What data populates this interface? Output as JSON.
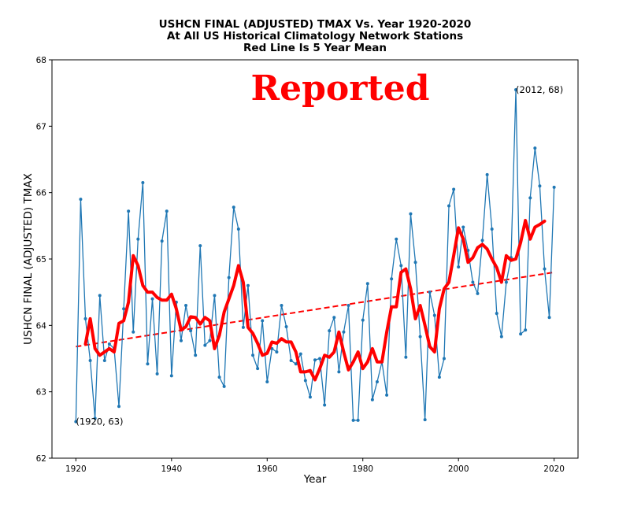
{
  "chart_data": {
    "type": "line",
    "title_lines": [
      "USHCN FINAL (ADJUSTED) TMAX Vs. Year 1920-2020",
      "At All US Historical Climatology Network Stations",
      "Red Line Is 5 Year Mean"
    ],
    "xlabel": "Year",
    "ylabel": "USHCN FINAL (ADJUSTED) TMAX",
    "xlim": [
      1915,
      2025
    ],
    "ylim": [
      62,
      68
    ],
    "xticks": [
      1920,
      1940,
      1960,
      1980,
      2000,
      2020
    ],
    "yticks": [
      62,
      63,
      64,
      65,
      66,
      67,
      68
    ],
    "grid": false,
    "stamp_text": "Reported",
    "stamp_color": "#ff0000",
    "annotations": [
      {
        "text": "(1920, 63)",
        "x": 1920,
        "y": 62.55
      },
      {
        "text": "(2012, 68)",
        "x": 2012,
        "y": 67.55
      }
    ],
    "series": [
      {
        "style": "line-with-dots",
        "color": "#1f77b4",
        "x": [
          1920,
          1921,
          1922,
          1923,
          1924,
          1925,
          1926,
          1927,
          1928,
          1929,
          1930,
          1931,
          1932,
          1933,
          1934,
          1935,
          1936,
          1937,
          1938,
          1939,
          1940,
          1941,
          1942,
          1943,
          1944,
          1945,
          1946,
          1947,
          1948,
          1949,
          1950,
          1951,
          1952,
          1953,
          1954,
          1955,
          1956,
          1957,
          1958,
          1959,
          1960,
          1961,
          1962,
          1963,
          1964,
          1965,
          1966,
          1967,
          1968,
          1969,
          1970,
          1971,
          1972,
          1973,
          1974,
          1975,
          1976,
          1977,
          1978,
          1979,
          1980,
          1981,
          1982,
          1983,
          1984,
          1985,
          1986,
          1987,
          1988,
          1989,
          1990,
          1991,
          1992,
          1993,
          1994,
          1995,
          1996,
          1997,
          1998,
          1999,
          2000,
          2001,
          2002,
          2003,
          2004,
          2005,
          2006,
          2007,
          2008,
          2009,
          2010,
          2011,
          2012,
          2013,
          2014,
          2015,
          2016,
          2017,
          2018,
          2019,
          2020
        ],
        "y": [
          62.55,
          65.9,
          64.1,
          63.47,
          62.6,
          64.45,
          63.47,
          63.72,
          63.65,
          62.78,
          64.25,
          65.72,
          63.9,
          65.3,
          66.15,
          63.42,
          64.4,
          63.27,
          65.27,
          65.72,
          63.24,
          64.35,
          63.77,
          64.3,
          63.92,
          63.55,
          65.2,
          63.7,
          63.77,
          64.45,
          63.22,
          63.08,
          64.72,
          65.78,
          65.45,
          63.97,
          64.6,
          63.55,
          63.35,
          64.07,
          63.15,
          63.65,
          63.6,
          64.3,
          63.98,
          63.47,
          63.42,
          63.57,
          63.17,
          62.92,
          63.48,
          63.5,
          62.8,
          63.92,
          64.12,
          63.3,
          63.9,
          64.3,
          62.57,
          62.57,
          64.08,
          64.63,
          62.88,
          63.15,
          63.45,
          62.95,
          64.7,
          65.3,
          64.9,
          63.52,
          65.68,
          64.95,
          63.83,
          62.58,
          64.5,
          64.15,
          63.22,
          63.5,
          65.8,
          66.05,
          64.88,
          65.48,
          65.13,
          64.65,
          64.48,
          65.28,
          66.27,
          65.45,
          64.18,
          63.83,
          64.65,
          65.02,
          67.55,
          63.87,
          63.93,
          65.92,
          66.67,
          66.1,
          64.85,
          64.12,
          66.08
        ]
      },
      {
        "style": "thick-line",
        "color": "#ff0000",
        "x": [
          1922,
          1923,
          1924,
          1925,
          1926,
          1927,
          1928,
          1929,
          1930,
          1931,
          1932,
          1933,
          1934,
          1935,
          1936,
          1937,
          1938,
          1939,
          1940,
          1941,
          1942,
          1943,
          1944,
          1945,
          1946,
          1947,
          1948,
          1949,
          1950,
          1951,
          1952,
          1953,
          1954,
          1955,
          1956,
          1957,
          1958,
          1959,
          1960,
          1961,
          1962,
          1963,
          1964,
          1965,
          1966,
          1967,
          1968,
          1969,
          1970,
          1971,
          1972,
          1973,
          1974,
          1975,
          1976,
          1977,
          1978,
          1979,
          1980,
          1981,
          1982,
          1983,
          1984,
          1985,
          1986,
          1987,
          1988,
          1989,
          1990,
          1991,
          1992,
          1993,
          1994,
          1995,
          1996,
          1997,
          1998,
          1999,
          2000,
          2001,
          2002,
          2003,
          2004,
          2005,
          2006,
          2007,
          2008,
          2009,
          2010,
          2011,
          2012,
          2013,
          2014,
          2015,
          2016,
          2017,
          2018
        ],
        "y": [
          63.72,
          64.1,
          63.65,
          63.55,
          63.6,
          63.65,
          63.6,
          64.03,
          64.07,
          64.35,
          65.05,
          64.9,
          64.6,
          64.5,
          64.5,
          64.42,
          64.38,
          64.38,
          64.47,
          64.25,
          63.93,
          63.98,
          64.13,
          64.12,
          64.02,
          64.12,
          64.07,
          63.65,
          63.85,
          64.2,
          64.4,
          64.6,
          64.9,
          64.65,
          63.97,
          63.88,
          63.73,
          63.55,
          63.58,
          63.75,
          63.73,
          63.8,
          63.75,
          63.75,
          63.6,
          63.3,
          63.3,
          63.32,
          63.18,
          63.35,
          63.55,
          63.52,
          63.6,
          63.9,
          63.6,
          63.33,
          63.45,
          63.6,
          63.35,
          63.45,
          63.65,
          63.45,
          63.45,
          63.9,
          64.28,
          64.28,
          64.8,
          64.85,
          64.55,
          64.1,
          64.3,
          64.0,
          63.68,
          63.6,
          64.25,
          64.55,
          64.65,
          65.05,
          65.47,
          65.3,
          64.95,
          65.02,
          65.17,
          65.22,
          65.15,
          65.0,
          64.87,
          64.65,
          65.05,
          64.98,
          65.0,
          65.25,
          65.58,
          65.3,
          65.48,
          65.52,
          65.57
        ]
      },
      {
        "style": "dashed-line",
        "color": "#ff0000",
        "x": [
          1920,
          2020
        ],
        "y": [
          63.68,
          64.8
        ]
      }
    ]
  }
}
